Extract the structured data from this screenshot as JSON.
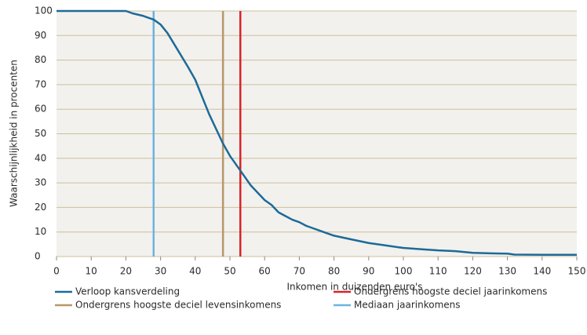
{
  "chart_data": {
    "type": "line",
    "xlabel": "Inkomen in duizenden euro's",
    "ylabel": "Waarschijnlijkheid in procenten",
    "x": [
      0,
      20,
      22,
      25,
      27,
      28,
      30,
      32,
      35,
      38,
      40,
      42,
      44,
      46,
      48,
      50,
      52,
      54,
      56,
      58,
      60,
      62,
      64,
      66,
      68,
      70,
      72,
      74,
      76,
      78,
      80,
      85,
      90,
      95,
      100,
      105,
      110,
      115,
      120,
      125,
      130,
      132,
      140,
      150
    ],
    "series": [
      {
        "name": "Verloop kansverdeling",
        "color": "#1d6a99",
        "values": [
          100,
          100,
          99,
          98,
          97,
          96.5,
          94.5,
          91,
          84,
          77,
          72,
          65,
          58,
          52,
          46,
          41,
          37,
          33,
          29,
          26,
          23,
          21,
          18,
          16.5,
          15,
          14,
          12.5,
          11.5,
          10.5,
          9.5,
          8.5,
          7,
          5.5,
          4.5,
          3.5,
          3,
          2.5,
          2.2,
          1.5,
          1.3,
          1.2,
          0.8,
          0.7,
          0.7
        ]
      }
    ],
    "reference_lines": [
      {
        "name": "Ondergrens hoogste deciel jaarinkomens",
        "color": "#d8232a",
        "x": 53
      },
      {
        "name": "Ondergrens hoogste deciel levensinkomens",
        "color": "#b8966b",
        "x": 48
      },
      {
        "name": "Mediaan jaarinkomens",
        "color": "#6cb3de",
        "x": 28
      }
    ],
    "xlim": [
      0,
      150
    ],
    "xticks": [
      0,
      10,
      20,
      30,
      40,
      50,
      60,
      70,
      80,
      90,
      100,
      110,
      120,
      130,
      140,
      150
    ],
    "ylim": [
      0,
      100
    ],
    "yticks": [
      0,
      10,
      20,
      30,
      40,
      50,
      60,
      70,
      80,
      90,
      100
    ],
    "grid": true
  }
}
